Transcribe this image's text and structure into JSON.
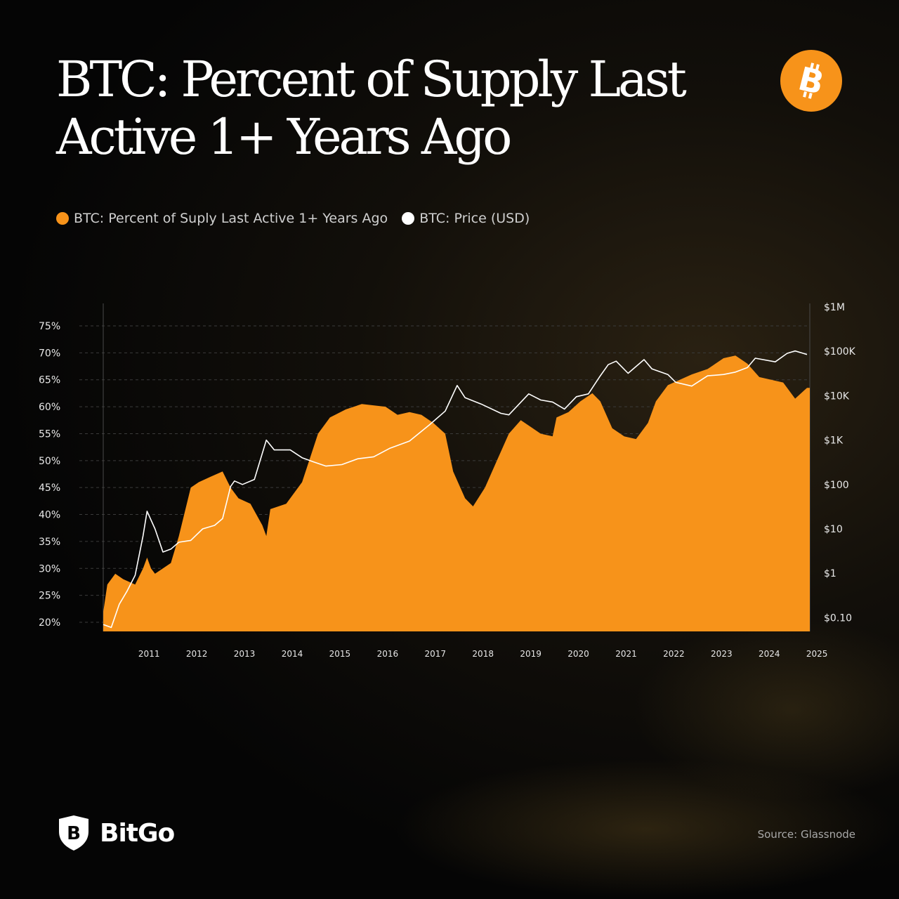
{
  "title": "BTC: Percent of Supply Last Active 1+ Years Ago",
  "legend": {
    "series1": "BTC: Percent of Suply Last Active 1+ Years Ago",
    "series2": "BTC: Price (USD)"
  },
  "brand": {
    "name": "BitGo"
  },
  "source": "Source: Glassnode",
  "colors": {
    "orange": "#f7931a",
    "price_line": "#ffffff",
    "background": "#060606"
  },
  "icons": {
    "badge": "bitcoin-icon",
    "brand": "bitgo-shield-icon"
  },
  "chart_data": {
    "type": "area",
    "x_tick_labels": [
      "2011",
      "2012",
      "2013",
      "2014",
      "2015",
      "2016",
      "2017",
      "2018",
      "2019",
      "2020",
      "2021",
      "2022",
      "2023",
      "2024",
      "2025"
    ],
    "y_left_ticks": [
      "20%",
      "25%",
      "30%",
      "35%",
      "40%",
      "45%",
      "50%",
      "55%",
      "60%",
      "65%",
      "70%",
      "75%"
    ],
    "y_left_range": [
      20,
      75
    ],
    "y_right_ticks": [
      "$0.10",
      "$1",
      "$10",
      "$100",
      "$1K",
      "$10K",
      "$100K",
      "$1M"
    ],
    "y_right_scale": "log",
    "y_right_range": [
      0.1,
      1000000
    ],
    "grid": "dashed horizontal",
    "legend_position": "top-left",
    "series": [
      {
        "name": "BTC: Percent of Suply Last Active 1+ Years Ago",
        "axis": "left",
        "points": [
          [
            "2010-07",
            22
          ],
          [
            "2010-08",
            27
          ],
          [
            "2010-10",
            29
          ],
          [
            "2010-12",
            28
          ],
          [
            "2011-03",
            27
          ],
          [
            "2011-05",
            30
          ],
          [
            "2011-06",
            32
          ],
          [
            "2011-07",
            30
          ],
          [
            "2011-08",
            29
          ],
          [
            "2011-10",
            30
          ],
          [
            "2011-12",
            31
          ],
          [
            "2012-02",
            36
          ],
          [
            "2012-05",
            45
          ],
          [
            "2012-07",
            46
          ],
          [
            "2012-10",
            47
          ],
          [
            "2013-01",
            48
          ],
          [
            "2013-03",
            45
          ],
          [
            "2013-05",
            43
          ],
          [
            "2013-08",
            42
          ],
          [
            "2013-11",
            38
          ],
          [
            "2013-12",
            36
          ],
          [
            "2014-01",
            41
          ],
          [
            "2014-05",
            42
          ],
          [
            "2014-09",
            46
          ],
          [
            "2015-01",
            55
          ],
          [
            "2015-04",
            58
          ],
          [
            "2015-08",
            59.5
          ],
          [
            "2015-12",
            60.5
          ],
          [
            "2016-06",
            60
          ],
          [
            "2016-09",
            58.5
          ],
          [
            "2016-12",
            59
          ],
          [
            "2017-03",
            58.5
          ],
          [
            "2017-06",
            57
          ],
          [
            "2017-09",
            55
          ],
          [
            "2017-11",
            48
          ],
          [
            "2018-02",
            43
          ],
          [
            "2018-04",
            41.5
          ],
          [
            "2018-07",
            45
          ],
          [
            "2018-10",
            50
          ],
          [
            "2019-01",
            55
          ],
          [
            "2019-04",
            57.5
          ],
          [
            "2019-07",
            56
          ],
          [
            "2019-09",
            55
          ],
          [
            "2019-12",
            54.5
          ],
          [
            "2020-01",
            58
          ],
          [
            "2020-04",
            59
          ],
          [
            "2020-07",
            61
          ],
          [
            "2020-10",
            62.5
          ],
          [
            "2020-12",
            61
          ],
          [
            "2021-03",
            56
          ],
          [
            "2021-06",
            54.5
          ],
          [
            "2021-09",
            54
          ],
          [
            "2021-12",
            57
          ],
          [
            "2022-02",
            61
          ],
          [
            "2022-05",
            64
          ],
          [
            "2022-08",
            65
          ],
          [
            "2022-11",
            66
          ],
          [
            "2023-03",
            67
          ],
          [
            "2023-07",
            69
          ],
          [
            "2023-10",
            69.5
          ],
          [
            "2024-01",
            68
          ],
          [
            "2024-04",
            65.5
          ],
          [
            "2024-07",
            65
          ],
          [
            "2024-10",
            64.5
          ],
          [
            "2025-01",
            61.5
          ],
          [
            "2025-04",
            63.5
          ]
        ]
      },
      {
        "name": "BTC: Price (USD)",
        "axis": "right",
        "points": [
          [
            "2010-07",
            0.07
          ],
          [
            "2010-09",
            0.06
          ],
          [
            "2010-11",
            0.2
          ],
          [
            "2011-01",
            0.4
          ],
          [
            "2011-03",
            0.9
          ],
          [
            "2011-05",
            7
          ],
          [
            "2011-06",
            25
          ],
          [
            "2011-08",
            10
          ],
          [
            "2011-10",
            3
          ],
          [
            "2011-12",
            3.5
          ],
          [
            "2012-02",
            5
          ],
          [
            "2012-05",
            5.5
          ],
          [
            "2012-08",
            10
          ],
          [
            "2012-11",
            12
          ],
          [
            "2013-01",
            17
          ],
          [
            "2013-03",
            90
          ],
          [
            "2013-04",
            120
          ],
          [
            "2013-06",
            100
          ],
          [
            "2013-09",
            130
          ],
          [
            "2013-12",
            1000
          ],
          [
            "2014-02",
            600
          ],
          [
            "2014-06",
            600
          ],
          [
            "2014-09",
            400
          ],
          [
            "2014-12",
            320
          ],
          [
            "2015-03",
            260
          ],
          [
            "2015-07",
            280
          ],
          [
            "2015-11",
            380
          ],
          [
            "2016-03",
            420
          ],
          [
            "2016-07",
            650
          ],
          [
            "2016-12",
            950
          ],
          [
            "2017-05",
            2200
          ],
          [
            "2017-09",
            4500
          ],
          [
            "2017-12",
            17000
          ],
          [
            "2018-02",
            9000
          ],
          [
            "2018-06",
            6500
          ],
          [
            "2018-11",
            4000
          ],
          [
            "2019-01",
            3700
          ],
          [
            "2019-06",
            11000
          ],
          [
            "2019-09",
            8000
          ],
          [
            "2019-12",
            7200
          ],
          [
            "2020-03",
            5000
          ],
          [
            "2020-06",
            9500
          ],
          [
            "2020-09",
            11000
          ],
          [
            "2020-12",
            28000
          ],
          [
            "2021-02",
            50000
          ],
          [
            "2021-04",
            60000
          ],
          [
            "2021-07",
            32000
          ],
          [
            "2021-11",
            65000
          ],
          [
            "2022-01",
            40000
          ],
          [
            "2022-05",
            30000
          ],
          [
            "2022-07",
            20000
          ],
          [
            "2022-11",
            16500
          ],
          [
            "2023-03",
            28000
          ],
          [
            "2023-07",
            30000
          ],
          [
            "2023-10",
            34000
          ],
          [
            "2024-01",
            43000
          ],
          [
            "2024-03",
            70000
          ],
          [
            "2024-08",
            58000
          ],
          [
            "2024-11",
            90000
          ],
          [
            "2025-01",
            102000
          ],
          [
            "2025-04",
            85000
          ]
        ]
      }
    ]
  }
}
